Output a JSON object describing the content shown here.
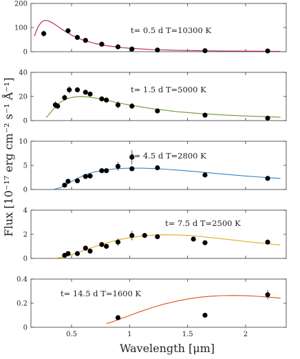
{
  "figure": {
    "xlabel": "Wavelength [μm]",
    "ylabel": "Flux [10⁻¹⁷ erg cm⁻² s⁻¹ Å⁻¹]"
  },
  "chart_data": [
    {
      "type": "scatter",
      "annotation": "t= 0.5 d T=10300 K",
      "xlim": [
        0.15,
        2.35
      ],
      "ylim": [
        0,
        200
      ],
      "xticks": [],
      "xtick_labels": [],
      "yticks": [
        0,
        100,
        200
      ],
      "ytick_labels": [
        "0",
        "100",
        "200"
      ],
      "curve_color": "#b5174f",
      "curve_x": [
        0.18,
        0.2,
        0.22,
        0.24,
        0.26,
        0.28,
        0.3,
        0.33,
        0.36,
        0.4,
        0.45,
        0.5,
        0.55,
        0.6,
        0.7,
        0.8,
        0.9,
        1.0,
        1.2,
        1.4,
        1.6,
        1.8,
        2.0,
        2.2,
        2.3
      ],
      "curve_y": [
        65,
        91,
        110,
        122,
        128,
        130,
        128,
        121,
        112,
        98,
        83,
        69,
        58,
        48,
        34,
        25,
        18.5,
        14,
        8.5,
        5.7,
        4,
        2.9,
        2.2,
        1.7,
        1.5
      ],
      "points": [
        {
          "x": 0.26,
          "y": 75,
          "yerr": 12
        },
        {
          "x": 0.47,
          "y": 87,
          "yerr": 0
        },
        {
          "x": 0.55,
          "y": 59,
          "yerr": 0
        },
        {
          "x": 0.62,
          "y": 47,
          "yerr": 0
        },
        {
          "x": 0.76,
          "y": 31,
          "yerr": 0
        },
        {
          "x": 0.9,
          "y": 20,
          "yerr": 0
        },
        {
          "x": 1.02,
          "y": 11,
          "yerr": 0
        },
        {
          "x": 1.24,
          "y": 7,
          "yerr": 0
        },
        {
          "x": 1.65,
          "y": 4,
          "yerr": 0
        },
        {
          "x": 2.19,
          "y": 3,
          "yerr": 0
        }
      ]
    },
    {
      "type": "scatter",
      "annotation": "t= 1.5 d T=5000 K",
      "xlim": [
        0.15,
        2.35
      ],
      "ylim": [
        0,
        40
      ],
      "xticks": [],
      "xtick_labels": [],
      "yticks": [
        0,
        20,
        40
      ],
      "ytick_labels": [
        "0",
        "20",
        "40"
      ],
      "curve_color": "#6a9a2a",
      "curve_x": [
        0.28,
        0.3,
        0.33,
        0.36,
        0.4,
        0.45,
        0.5,
        0.55,
        0.6,
        0.65,
        0.7,
        0.8,
        0.9,
        1.0,
        1.2,
        1.4,
        1.6,
        1.8,
        2.0,
        2.2,
        2.3
      ],
      "curve_y": [
        2.5,
        4.5,
        8,
        11.5,
        15,
        17.8,
        19.2,
        19.8,
        19.9,
        19.5,
        18.8,
        16.9,
        14.8,
        12.9,
        9.8,
        7.5,
        5.9,
        4.7,
        3.8,
        3.1,
        2.8
      ],
      "points": [
        {
          "x": 0.36,
          "y": 13,
          "yerr": 3
        },
        {
          "x": 0.38,
          "y": 12,
          "yerr": 2.5
        },
        {
          "x": 0.44,
          "y": 19,
          "yerr": 2.5
        },
        {
          "x": 0.48,
          "y": 25.5,
          "yerr": 3
        },
        {
          "x": 0.55,
          "y": 25.5,
          "yerr": 2
        },
        {
          "x": 0.62,
          "y": 23.5,
          "yerr": 2
        },
        {
          "x": 0.66,
          "y": 22,
          "yerr": 2
        },
        {
          "x": 0.76,
          "y": 18,
          "yerr": 2
        },
        {
          "x": 0.8,
          "y": 17,
          "yerr": 2
        },
        {
          "x": 0.9,
          "y": 13,
          "yerr": 3
        },
        {
          "x": 1.02,
          "y": 12,
          "yerr": 2.5
        },
        {
          "x": 1.24,
          "y": 8,
          "yerr": 0
        },
        {
          "x": 1.65,
          "y": 4.5,
          "yerr": 0
        },
        {
          "x": 2.19,
          "y": 2,
          "yerr": 0
        }
      ]
    },
    {
      "type": "scatter",
      "annotation": "t= 4.5 d T=2800 K",
      "xlim": [
        0.15,
        2.35
      ],
      "ylim": [
        0,
        10
      ],
      "xticks": [],
      "xtick_labels": [],
      "yticks": [
        0,
        5,
        10
      ],
      "ytick_labels": [
        "0",
        "5",
        "10"
      ],
      "curve_color": "#2e86c8",
      "curve_x": [
        0.35,
        0.4,
        0.45,
        0.5,
        0.55,
        0.6,
        0.65,
        0.7,
        0.8,
        0.9,
        1.0,
        1.05,
        1.1,
        1.2,
        1.3,
        1.4,
        1.6,
        1.8,
        2.0,
        2.2,
        2.3
      ],
      "curve_y": [
        0.05,
        0.35,
        0.95,
        1.65,
        2.3,
        2.85,
        3.3,
        3.65,
        4.1,
        4.32,
        4.42,
        4.43,
        4.42,
        4.35,
        4.22,
        4.05,
        3.65,
        3.2,
        2.8,
        2.45,
        2.3
      ],
      "points": [
        {
          "x": 0.44,
          "y": 0.9,
          "yerr": 0.4
        },
        {
          "x": 0.47,
          "y": 1.7,
          "yerr": 0.4
        },
        {
          "x": 0.55,
          "y": 1.8,
          "yerr": 0.4
        },
        {
          "x": 0.62,
          "y": 2.7,
          "yerr": 0.5
        },
        {
          "x": 0.66,
          "y": 2.8,
          "yerr": 0.5
        },
        {
          "x": 0.76,
          "y": 3.9,
          "yerr": 0.5
        },
        {
          "x": 0.8,
          "y": 3.9,
          "yerr": 0.5
        },
        {
          "x": 0.9,
          "y": 4.8,
          "yerr": 0.9
        },
        {
          "x": 1.02,
          "y": 6.7,
          "yerr": 1.5
        },
        {
          "x": 1.02,
          "y": 4.3,
          "yerr": 0
        },
        {
          "x": 1.24,
          "y": 4.5,
          "yerr": 0
        },
        {
          "x": 1.65,
          "y": 3.0,
          "yerr": 0
        },
        {
          "x": 2.19,
          "y": 2.3,
          "yerr": 0
        }
      ]
    },
    {
      "type": "scatter",
      "annotation": "t= 7.5 d T=2500 K",
      "xlim": [
        0.15,
        2.35
      ],
      "ylim": [
        0,
        4
      ],
      "xticks": [],
      "xtick_labels": [],
      "yticks": [
        0,
        2,
        4
      ],
      "ytick_labels": [
        "0",
        "2",
        "4"
      ],
      "curve_color": "#e0a81c",
      "curve_x": [
        0.35,
        0.4,
        0.45,
        0.5,
        0.55,
        0.6,
        0.65,
        0.7,
        0.8,
        0.9,
        1.0,
        1.1,
        1.2,
        1.3,
        1.4,
        1.5,
        1.6,
        1.8,
        2.0,
        2.2,
        2.3
      ],
      "curve_y": [
        0.01,
        0.06,
        0.16,
        0.3,
        0.46,
        0.64,
        0.81,
        0.98,
        1.28,
        1.53,
        1.72,
        1.85,
        1.93,
        1.96,
        1.95,
        1.91,
        1.83,
        1.62,
        1.4,
        1.2,
        1.11
      ],
      "points": [
        {
          "x": 0.44,
          "y": 0.25,
          "yerr": 0.1
        },
        {
          "x": 0.47,
          "y": 0.4,
          "yerr": 0.1
        },
        {
          "x": 0.55,
          "y": 0.4,
          "yerr": 0.1
        },
        {
          "x": 0.62,
          "y": 0.85,
          "yerr": 0.12
        },
        {
          "x": 0.66,
          "y": 0.6,
          "yerr": 0.12
        },
        {
          "x": 0.76,
          "y": 1.15,
          "yerr": 0.15
        },
        {
          "x": 0.8,
          "y": 1.0,
          "yerr": 0.15
        },
        {
          "x": 0.9,
          "y": 1.35,
          "yerr": 0.3
        },
        {
          "x": 1.02,
          "y": 1.9,
          "yerr": 0.4
        },
        {
          "x": 1.13,
          "y": 1.9,
          "yerr": 0
        },
        {
          "x": 1.24,
          "y": 1.8,
          "yerr": 0.15
        },
        {
          "x": 1.55,
          "y": 1.6,
          "yerr": 0
        },
        {
          "x": 1.65,
          "y": 1.3,
          "yerr": 0.1
        },
        {
          "x": 2.19,
          "y": 1.35,
          "yerr": 0.15
        }
      ]
    },
    {
      "type": "scatter",
      "annotation": "t= 14.5 d T=1600 K",
      "xlim": [
        0.15,
        2.35
      ],
      "ylim": [
        0,
        0.4
      ],
      "xticks": [
        0.5,
        1,
        1.5,
        2
      ],
      "xtick_labels": [
        "0.5",
        "1",
        "1.5",
        "2"
      ],
      "yticks": [
        0,
        0.2,
        0.4
      ],
      "ytick_labels": [
        "0",
        "0.2",
        "0.4"
      ],
      "curve_color": "#e0501a",
      "curve_x": [
        0.8,
        0.85,
        0.9,
        0.95,
        1.0,
        1.1,
        1.2,
        1.3,
        1.4,
        1.5,
        1.6,
        1.7,
        1.8,
        1.9,
        2.0,
        2.1,
        2.2,
        2.3
      ],
      "curve_y": [
        0.03,
        0.045,
        0.062,
        0.08,
        0.098,
        0.133,
        0.165,
        0.193,
        0.216,
        0.235,
        0.249,
        0.258,
        0.263,
        0.264,
        0.262,
        0.257,
        0.25,
        0.242
      ],
      "points": [
        {
          "x": 0.9,
          "y": 0.08,
          "yerr": 0
        },
        {
          "x": 1.65,
          "y": 0.1,
          "yerr": 0
        },
        {
          "x": 2.19,
          "y": 0.27,
          "yerr": 0.04
        }
      ]
    }
  ]
}
